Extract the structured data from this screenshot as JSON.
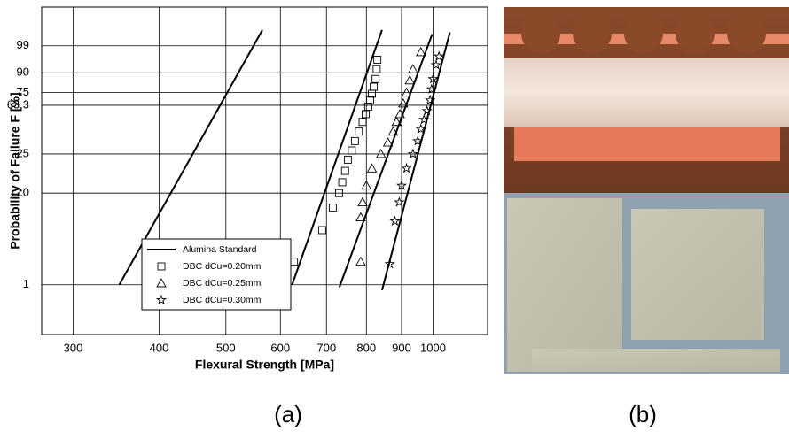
{
  "chart_data": {
    "type": "weibull",
    "xlabel": "Flexural Strength [MPa]",
    "ylabel": "Probability of Failure F [%]",
    "xscale": "log",
    "yscale": "weibull",
    "xlim": [
      270,
      1200
    ],
    "ylim": [
      0.28,
      99.9996
    ],
    "xticks": [
      300,
      400,
      500,
      600,
      700,
      800,
      900,
      1000
    ],
    "yticks": [
      1,
      10,
      25,
      63.3,
      75,
      90,
      99
    ],
    "grid": true,
    "legend": "lower left",
    "series": [
      {
        "name": "Alumina Standard",
        "color": "#000000",
        "marker": "none",
        "x": [
          350,
          565
        ],
        "values": [
          1,
          99.9
        ]
      },
      {
        "name": "DBC dCu=0.20mm",
        "color": "#000000",
        "marker": "square",
        "x": [
          628,
          690,
          715,
          730,
          738,
          745,
          752,
          762,
          770,
          780,
          790,
          798,
          805,
          810,
          815,
          820,
          825,
          828,
          830
        ],
        "values": [
          1.8,
          4,
          7,
          10,
          13,
          17,
          22,
          27,
          33,
          40,
          48,
          55,
          62,
          68,
          74,
          80,
          86,
          92,
          96
        ],
        "fit": {
          "x": [
            624,
            843
          ],
          "values": [
            1,
            99.9
          ]
        }
      },
      {
        "name": "DBC dCu=0.25mm",
        "color": "#000000",
        "marker": "triangle",
        "x": [
          785,
          785,
          790,
          800,
          815,
          840,
          860,
          875,
          885,
          895,
          905,
          915,
          925,
          935,
          960
        ],
        "values": [
          1.8,
          5.5,
          8,
          12,
          18,
          25,
          32,
          40,
          48,
          55,
          65,
          75,
          85,
          92,
          98
        ],
        "fit": {
          "x": [
            731,
            997
          ],
          "values": [
            0.94,
            99.8
          ]
        }
      },
      {
        "name": "DBC dCu=0.30mm",
        "color": "#000000",
        "marker": "star",
        "x": [
          865,
          880,
          893,
          900,
          915,
          935,
          950,
          960,
          970,
          980,
          990,
          995,
          1000,
          1010,
          1020
        ],
        "values": [
          1.7,
          5,
          8,
          12,
          18,
          25,
          33,
          42,
          50,
          58,
          68,
          78,
          86,
          94,
          97
        ],
        "fit": {
          "x": [
            843,
            1058
          ],
          "values": [
            0.87,
            99.85
          ]
        }
      }
    ]
  },
  "panel_labels": [
    "(a)",
    "(b)"
  ]
}
